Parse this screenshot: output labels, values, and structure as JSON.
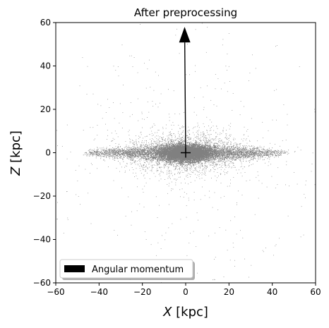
{
  "chart_data": {
    "type": "scatter",
    "title": "After preprocessing",
    "xlabel_var": "X",
    "xlabel_unit": " [kpc]",
    "ylabel_var": "Z",
    "ylabel_unit": " [kpc]",
    "xlim": [
      -60,
      60
    ],
    "ylim": [
      -60,
      60
    ],
    "xticks": [
      -60,
      -40,
      -20,
      0,
      20,
      40,
      60
    ],
    "yticks": [
      -60,
      -40,
      -20,
      0,
      20,
      40,
      60
    ],
    "xtick_labels": [
      "−60",
      "−40",
      "−20",
      "0",
      "20",
      "40",
      "60"
    ],
    "ytick_labels": [
      "−60",
      "−40",
      "−20",
      "0",
      "20",
      "40",
      "60"
    ],
    "point_color": "#808080",
    "particles": {
      "description": "edge-on stellar disk particle distribution",
      "center": [
        0,
        0
      ],
      "disk_radial_extent": 50,
      "disk_thickness": 3,
      "bulge_radius": 14
    },
    "center_marker": {
      "x": 0,
      "y": 0,
      "symbol": "+"
    },
    "arrow": {
      "label": "Angular momentum",
      "x0": 0,
      "y0": 0,
      "x1": -0.5,
      "y1": 58,
      "color": "#000000"
    },
    "legend": {
      "entries": [
        "Angular momentum"
      ],
      "placement": "lower-left"
    }
  }
}
